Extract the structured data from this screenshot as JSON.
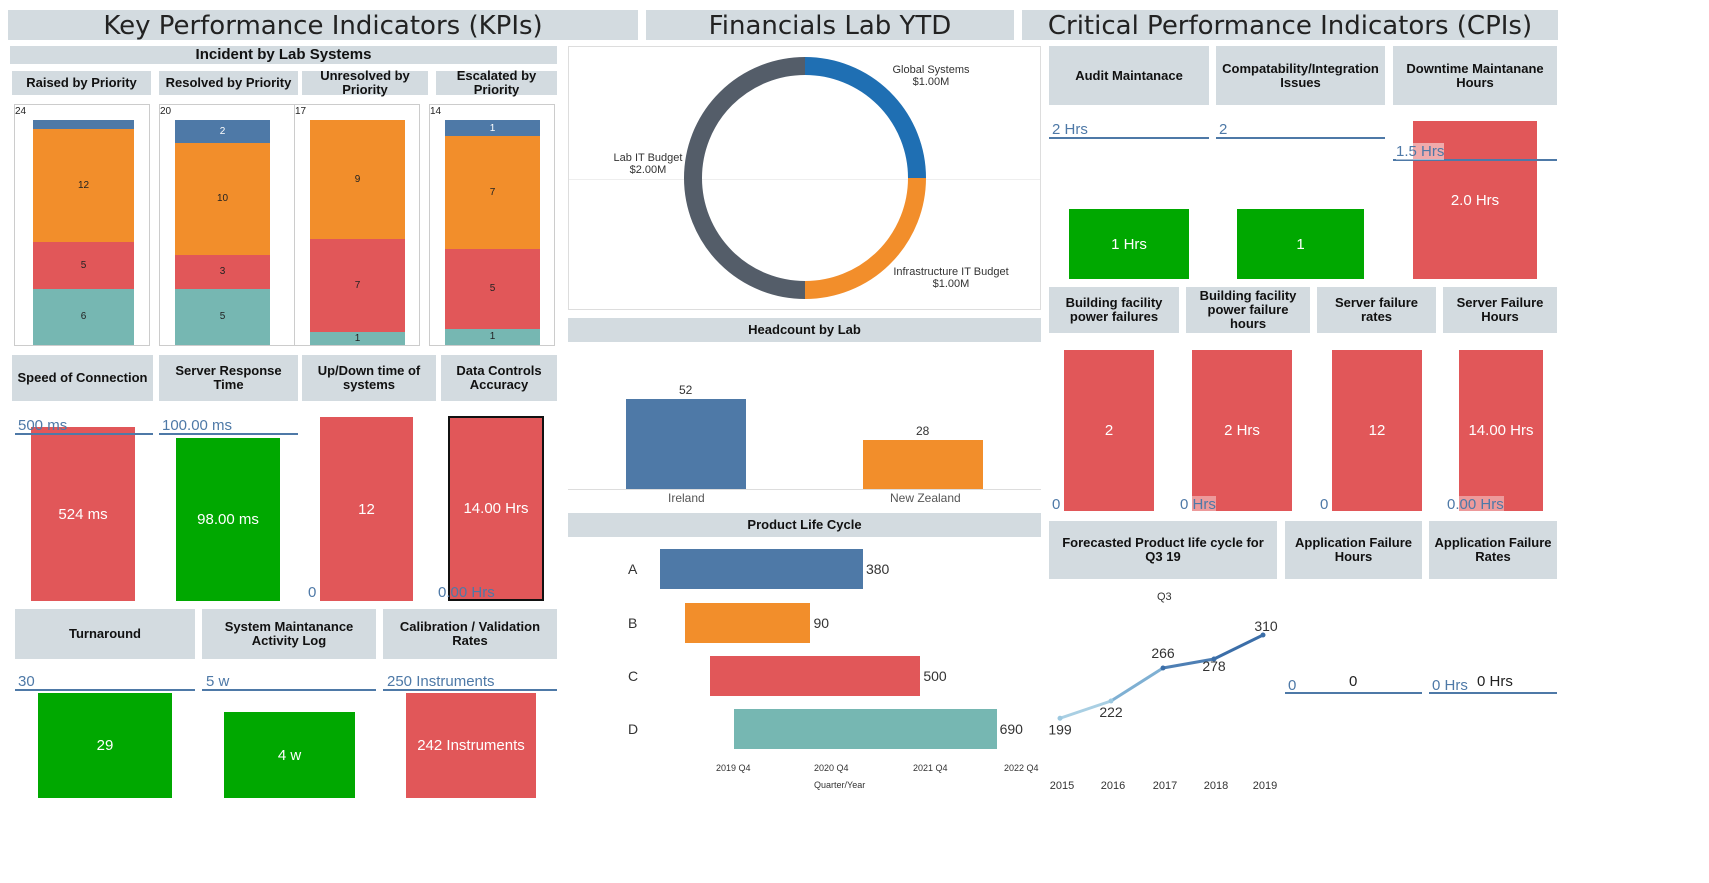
{
  "sections": {
    "kpi": "Key Performance Indicators (KPIs)",
    "fin": "Financials Lab YTD",
    "cpi": "Critical Performance Indicators (CPIs)"
  },
  "incident": {
    "title": "Incident by Lab Systems",
    "charts": [
      {
        "header": "Raised by Priority",
        "total": "24",
        "segments": [
          {
            "value": 1,
            "label": ""
          },
          {
            "value": 12,
            "label": "12"
          },
          {
            "value": 5,
            "label": "5"
          },
          {
            "value": 6,
            "label": "6"
          }
        ]
      },
      {
        "header": "Resolved by Priority",
        "total": "20",
        "segments": [
          {
            "value": 2,
            "label": "2"
          },
          {
            "value": 10,
            "label": "10"
          },
          {
            "value": 3,
            "label": "3"
          },
          {
            "value": 5,
            "label": "5"
          }
        ]
      },
      {
        "header": "Unresolved by Priority",
        "total": "17",
        "segments": [
          {
            "value": 0,
            "label": ""
          },
          {
            "value": 9,
            "label": "9"
          },
          {
            "value": 7,
            "label": "7"
          },
          {
            "value": 1,
            "label": "1"
          }
        ]
      },
      {
        "header": "Escalated by Priority",
        "total": "14",
        "segments": [
          {
            "value": 1,
            "label": "1"
          },
          {
            "value": 7,
            "label": "7"
          },
          {
            "value": 5,
            "label": "5"
          },
          {
            "value": 1,
            "label": "1"
          }
        ]
      }
    ]
  },
  "kpi_row2": [
    {
      "header": "Speed of Connection",
      "ref_label": "500 ms",
      "value_label": "524 ms",
      "color": "#e15759"
    },
    {
      "header": "Server Response Time",
      "ref_label": "100.00 ms",
      "value_label": "98.00 ms",
      "color": "#00a800"
    },
    {
      "header": "Up/Down time of systems",
      "zero_label": "0",
      "value_label": "12",
      "color": "#e15759"
    },
    {
      "header": "Data Controls Accuracy",
      "zero_label": "0.00 Hrs",
      "value_label": "14.00 Hrs",
      "color": "#e15759"
    }
  ],
  "kpi_row3": [
    {
      "header": "Turnaround",
      "ref_label": "30",
      "value_label": "29",
      "color": "#00a800"
    },
    {
      "header": "System Maintanance Activity Log",
      "ref_label": "5 w",
      "value_label": "4 w",
      "color": "#00a800"
    },
    {
      "header": "Calibration / Validation Rates",
      "ref_label": "250 Instruments",
      "value_label": "242 Instruments",
      "color": "#e15759"
    }
  ],
  "donut": {
    "slices": [
      {
        "label": "Global Systems",
        "value_label": "$1.00M",
        "value": 1.0,
        "color": "#1f6fb3"
      },
      {
        "label": "Infrastructure IT Budget",
        "value_label": "$1.00M",
        "value": 1.0,
        "color": "#f28e2b"
      },
      {
        "label": "Lab IT Budget",
        "value_label": "$2.00M",
        "value": 2.0,
        "color": "#545d69"
      }
    ]
  },
  "headcount": {
    "title": "Headcount by Lab",
    "bars": [
      {
        "label": "Ireland",
        "value": 52,
        "value_label": "52",
        "color": "#4e79a7"
      },
      {
        "label": "New Zealand",
        "value": 28,
        "value_label": "28",
        "color": "#f28e2b"
      }
    ]
  },
  "plc": {
    "title": "Product Life Cycle",
    "rows": [
      {
        "label": "A",
        "value_label": "380",
        "start": 0.0,
        "end": 2.05,
        "color": "#4e79a7"
      },
      {
        "label": "B",
        "value_label": "90",
        "start": 0.25,
        "end": 1.52,
        "color": "#f28e2b"
      },
      {
        "label": "C",
        "value_label": "500",
        "start": 0.5,
        "end": 2.63,
        "color": "#e15759"
      },
      {
        "label": "D",
        "value_label": "690",
        "start": 0.75,
        "end": 3.4,
        "color": "#76b7b2"
      }
    ],
    "ticks": [
      "2019 Q4",
      "2020 Q4",
      "2021 Q4",
      "2022 Q4"
    ],
    "xlabel": "Quarter/Year"
  },
  "cpi_row1": [
    {
      "header": "Audit Maintanace",
      "ref_label": "2 Hrs",
      "value_label": "1 Hrs",
      "color": "#00a800"
    },
    {
      "header": "Compatability/Integration Issues",
      "ref_label": "2",
      "value_label": "1",
      "color": "#00a800"
    },
    {
      "header": "Downtime Maintanane Hours",
      "ref_label": "1.5 Hrs",
      "value_label": "2.0 Hrs",
      "color": "#e15759"
    }
  ],
  "cpi_row2": [
    {
      "header": "Building facility power failures",
      "zero_label": "0",
      "value_label": "2",
      "color": "#e15759"
    },
    {
      "header": "Building facility power failure hours",
      "zero_label": "0 Hrs",
      "value_label": "2 Hrs",
      "color": "#e15759"
    },
    {
      "header": "Server failure rates",
      "zero_label": "0",
      "value_label": "12",
      "color": "#e15759"
    },
    {
      "header": "Server Failure Hours",
      "zero_label": "0.00 Hrs",
      "value_label": "14.00 Hrs",
      "color": "#e15759"
    }
  ],
  "forecast": {
    "header": "Forecasted Product life cycle for Q3 19",
    "series_label": "Q3",
    "x": [
      "2015",
      "2016",
      "2017",
      "2018",
      "2019"
    ],
    "values": [
      199,
      222,
      266,
      278,
      310
    ],
    "value_labels": [
      "199",
      "222",
      "266",
      "278",
      "310"
    ]
  },
  "cpi_row3": [
    {
      "header": "Application Failure Hours",
      "zero_label": "0",
      "value_label": "0"
    },
    {
      "header": "Application Failure Rates",
      "zero_label": "0 Hrs",
      "value_label": "0 Hrs"
    }
  ]
}
